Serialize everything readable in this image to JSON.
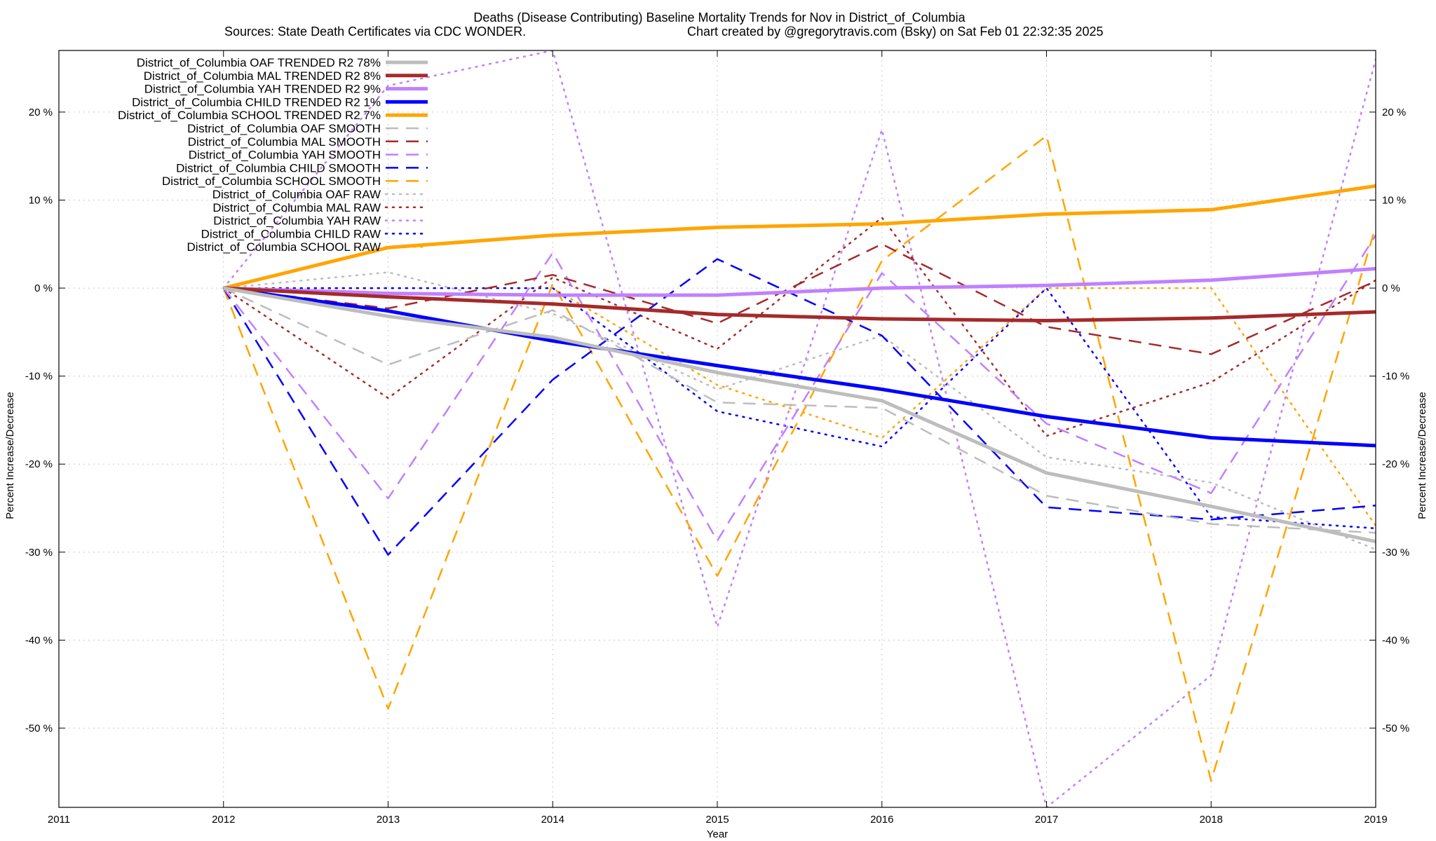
{
  "chart_data": {
    "type": "line",
    "title": "Deaths (Disease Contributing)  Baseline Mortality Trends for Nov in District_of_Columbia",
    "subtitle_left": "Sources: State Death Certificates via CDC WONDER.",
    "subtitle_right": "Chart created by @gregorytravis.com (Bsky) on Sat Feb 01 22:32:35 2025",
    "xlabel": "Year",
    "ylabel_left": "Percent Increase/Decrease",
    "ylabel_right": "Percent Increase/Decrease",
    "xlim": [
      2011,
      2019
    ],
    "ylim": [
      -59,
      27
    ],
    "x_ticks": [
      2011,
      2012,
      2013,
      2014,
      2015,
      2016,
      2017,
      2018,
      2019
    ],
    "y_ticks": [
      -50,
      -40,
      -30,
      -20,
      -10,
      0,
      10,
      20
    ],
    "y_tick_labels_left": [
      "-50 %",
      "-40 %",
      "-30 %",
      "-20 %",
      "-10 %",
      "0 %",
      "10 %",
      "20 %"
    ],
    "y_tick_labels_right": [
      "-50 %",
      "-40 %",
      "-30 %",
      "-20 %",
      "-10 %",
      "0 %",
      "10 %",
      "20 %"
    ],
    "grid": true,
    "legend_position": "top-left",
    "x": [
      2012,
      2013,
      2014,
      2015,
      2016,
      2017,
      2018,
      2019
    ],
    "series": [
      {
        "name": "District_of_Columbia OAF TRENDED R2  78%",
        "color": "#bdbdbd",
        "style": "solid",
        "width": 5,
        "values": [
          0,
          -3.2,
          -5.6,
          -9.6,
          -12.8,
          -21.0,
          -24.8,
          -28.8
        ]
      },
      {
        "name": "District_of_Columbia MAL TRENDED R2   8%",
        "color": "#a52a2a",
        "style": "solid",
        "width": 5,
        "values": [
          0,
          -1.0,
          -1.8,
          -3.0,
          -3.5,
          -3.7,
          -3.4,
          -2.7
        ]
      },
      {
        "name": "District_of_Columbia YAH TRENDED R2   9%",
        "color": "#c080ff",
        "style": "solid",
        "width": 5,
        "values": [
          0,
          -0.6,
          -0.8,
          -0.8,
          0.0,
          0.3,
          0.9,
          2.2
        ]
      },
      {
        "name": "District_of_Columbia CHILD TRENDED R2   1%",
        "color": "#0000ff",
        "style": "solid",
        "width": 5,
        "values": [
          0,
          -2.6,
          -6.0,
          -8.8,
          -11.5,
          -14.6,
          -17.0,
          -17.9
        ]
      },
      {
        "name": "District_of_Columbia SCHOOL TRENDED R2   7%",
        "color": "#ffa500",
        "style": "solid",
        "width": 5,
        "values": [
          0,
          4.6,
          6.0,
          6.9,
          7.3,
          8.4,
          8.9,
          11.6
        ]
      },
      {
        "name": "District_of_Columbia OAF SMOOTH",
        "color": "#bdbdbd",
        "style": "dashed",
        "width": 2.5,
        "values": [
          0,
          -8.7,
          -2.5,
          -13.0,
          -13.6,
          -23.6,
          -26.8,
          -27.8
        ]
      },
      {
        "name": "District_of_Columbia MAL SMOOTH",
        "color": "#a52a2a",
        "style": "dashed",
        "width": 2.5,
        "values": [
          0,
          -2.3,
          1.5,
          -4.0,
          5.0,
          -4.4,
          -7.5,
          0.8
        ]
      },
      {
        "name": "District_of_Columbia YAH SMOOTH",
        "color": "#c080ff",
        "style": "dashed",
        "width": 2.5,
        "values": [
          0,
          -23.9,
          4.0,
          -28.7,
          1.7,
          -15.4,
          -23.3,
          6.0
        ]
      },
      {
        "name": "District_of_Columbia CHILD SMOOTH",
        "color": "#0000ff",
        "style": "dashed",
        "width": 2.5,
        "values": [
          0,
          -30.3,
          -10.4,
          3.3,
          -5.4,
          -24.9,
          -26.3,
          -24.7
        ]
      },
      {
        "name": "District_of_Columbia SCHOOL SMOOTH",
        "color": "#ffa500",
        "style": "dashed",
        "width": 2.5,
        "values": [
          0,
          -47.8,
          0.5,
          -32.7,
          3.1,
          17.3,
          -56.0,
          7.0
        ]
      },
      {
        "name": "District_of_Columbia OAF RAW",
        "color": "#bdbdbd",
        "style": "dotted",
        "width": 2.5,
        "values": [
          0,
          1.8,
          -2.9,
          -11.5,
          -5.4,
          -19.2,
          -22.1,
          -29.7
        ]
      },
      {
        "name": "District_of_Columbia MAL RAW",
        "color": "#a52a2a",
        "style": "dotted",
        "width": 2.5,
        "values": [
          0,
          -12.5,
          1.2,
          -6.9,
          8.0,
          -16.8,
          -10.7,
          0.9
        ]
      },
      {
        "name": "District_of_Columbia YAH RAW",
        "color": "#c080ff",
        "style": "dotted",
        "width": 2.5,
        "values": [
          0,
          23.0,
          27.0,
          -38.5,
          18.0,
          -59.0,
          -44.0,
          26.0
        ]
      },
      {
        "name": "District_of_Columbia CHILD RAW",
        "color": "#0000ff",
        "style": "dotted",
        "width": 2.5,
        "values": [
          0,
          0.0,
          0.0,
          -14.0,
          -18.0,
          0.0,
          -26.0,
          -27.3
        ]
      },
      {
        "name": "District_of_Columbia SCHOOL RAW",
        "color": "#ffa500",
        "style": "dotted",
        "width": 2.5,
        "values": [
          0,
          0.0,
          0.0,
          -11.0,
          -17.0,
          0.0,
          0.0,
          -27.0
        ]
      }
    ]
  }
}
